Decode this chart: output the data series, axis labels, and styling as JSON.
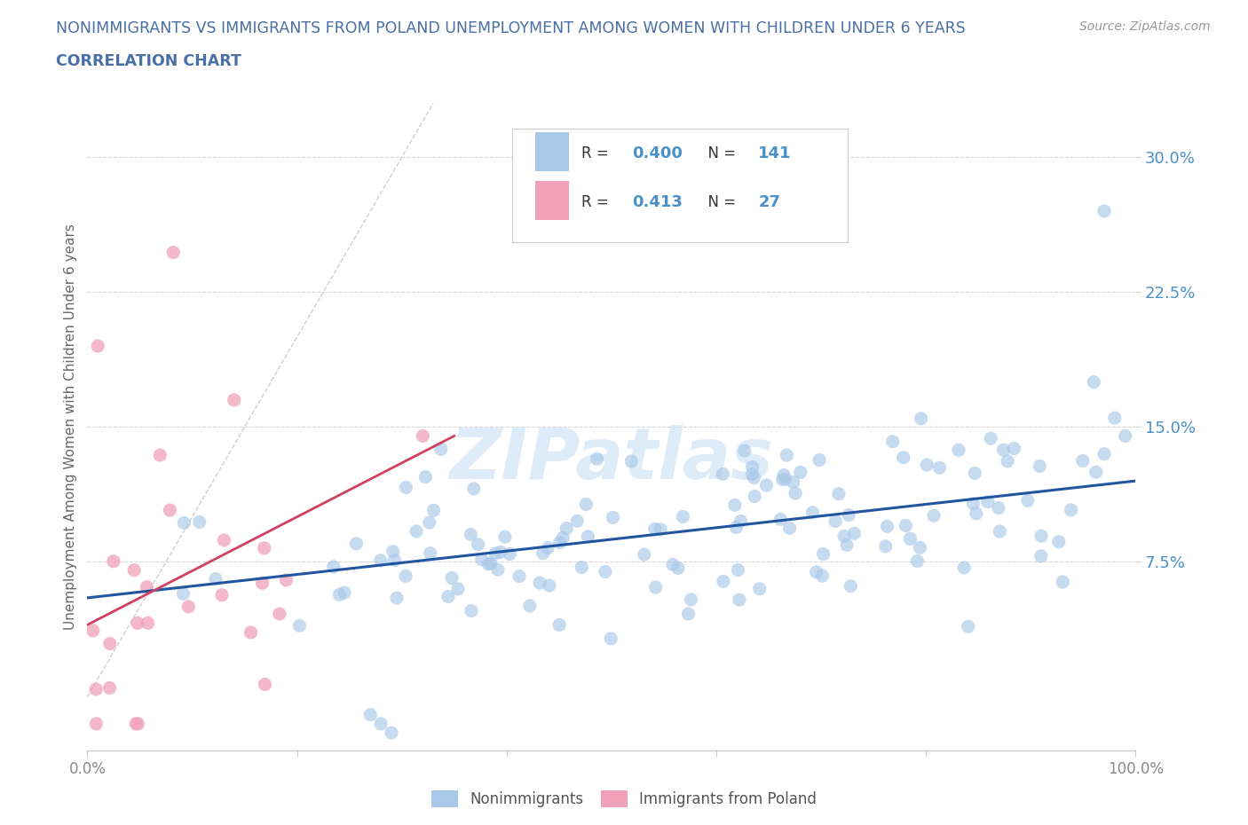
{
  "title_line1": "NONIMMIGRANTS VS IMMIGRANTS FROM POLAND UNEMPLOYMENT AMONG WOMEN WITH CHILDREN UNDER 6 YEARS",
  "title_line2": "CORRELATION CHART",
  "title_color": "#4a6fa5",
  "source_text": "Source: ZipAtlas.com",
  "ylabel": "Unemployment Among Women with Children Under 6 years",
  "xlim": [
    0.0,
    1.0
  ],
  "ylim": [
    -0.03,
    0.33
  ],
  "yticks": [
    0.075,
    0.15,
    0.225,
    0.3
  ],
  "ytick_labels": [
    "7.5%",
    "15.0%",
    "22.5%",
    "30.0%"
  ],
  "xticks": [
    0.0,
    0.2,
    0.4,
    0.6,
    0.8,
    1.0
  ],
  "xtick_labels": [
    "0.0%",
    "",
    "",
    "",
    "",
    "100.0%"
  ],
  "blue_color": "#a8c8e8",
  "pink_color": "#f0a0b8",
  "blue_line_color": "#2255a0",
  "pink_line_color": "#d04060",
  "diagonal_color": "#bbbbbb",
  "background_color": "#ffffff",
  "grid_color": "#d8d8d8",
  "R_blue": 0.4,
  "N_blue": 141,
  "R_pink": 0.413,
  "N_pink": 27,
  "watermark_text": "ZIPatlas",
  "watermark_color": "#c8d8f0",
  "legend_label_blue": "Nonimmigrants",
  "legend_label_pink": "Immigrants from Poland"
}
